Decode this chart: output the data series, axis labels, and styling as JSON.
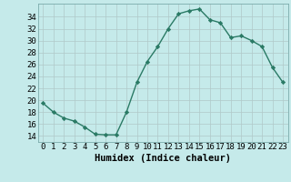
{
  "x": [
    0,
    1,
    2,
    3,
    4,
    5,
    6,
    7,
    8,
    9,
    10,
    11,
    12,
    13,
    14,
    15,
    16,
    17,
    18,
    19,
    20,
    21,
    22,
    23
  ],
  "y": [
    19.5,
    18.0,
    17.0,
    16.5,
    15.5,
    14.3,
    14.2,
    14.2,
    18.0,
    23.0,
    26.5,
    29.0,
    32.0,
    34.5,
    35.0,
    35.3,
    33.5,
    33.0,
    30.5,
    30.8,
    30.0,
    29.0,
    25.5,
    23.0
  ],
  "xlabel": "Humidex (Indice chaleur)",
  "ylabel_ticks": [
    14,
    16,
    18,
    20,
    22,
    24,
    26,
    28,
    30,
    32,
    34
  ],
  "ylim": [
    13.0,
    36.2
  ],
  "xlim": [
    -0.5,
    23.5
  ],
  "bg_color": "#c5eaea",
  "line_color": "#2a7a65",
  "grid_color": "#b0c8c8",
  "marker": "D",
  "marker_size": 2.2,
  "line_width": 1.0,
  "xlabel_fontsize": 7.5,
  "tick_fontsize": 6.5
}
